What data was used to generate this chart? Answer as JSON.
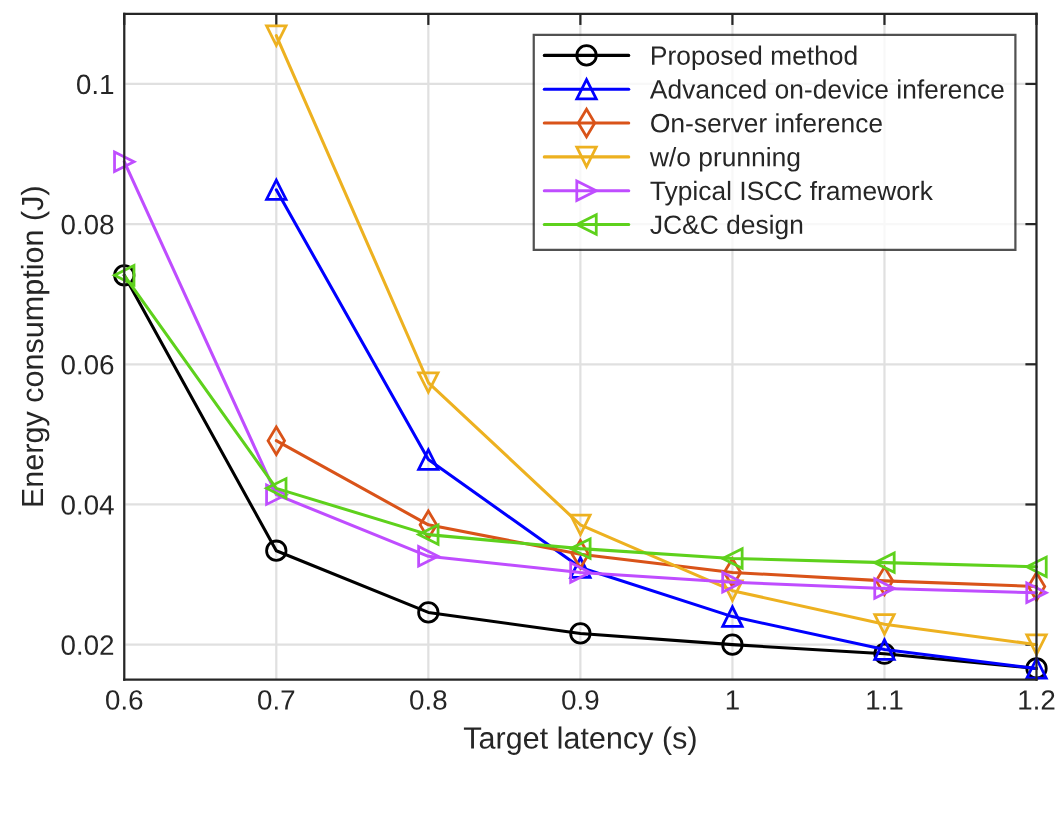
{
  "chart_data": {
    "type": "line",
    "xlabel": "Target latency (s)",
    "ylabel": "Energy consumption (J)",
    "x": [
      0.6,
      0.7,
      0.8,
      0.9,
      1.0,
      1.1,
      1.2
    ],
    "series": [
      {
        "name": "Proposed method",
        "color": "#000000",
        "marker": "circle",
        "values": [
          0.0727,
          0.0334,
          0.0246,
          0.0216,
          0.02,
          0.0187,
          0.0166
        ]
      },
      {
        "name": "Advanced on-device inference",
        "color": "#0000ff",
        "marker": "triangle",
        "values": [
          null,
          0.0849,
          0.0464,
          0.031,
          0.024,
          0.0193,
          0.0166
        ]
      },
      {
        "name": "On-server inference",
        "color": "#d95319",
        "marker": "diamond",
        "values": [
          null,
          0.0491,
          0.0371,
          0.0329,
          0.0303,
          0.0291,
          0.0283
        ]
      },
      {
        "name": "w/o prunning",
        "color": "#edb120",
        "marker": "triangle-down",
        "values": [
          null,
          0.1069,
          0.0574,
          0.0371,
          0.0277,
          0.0229,
          0.02
        ]
      },
      {
        "name": "Typical ISCC framework",
        "color": "#bf4dff",
        "marker": "triangle-right",
        "values": [
          0.0889,
          0.0414,
          0.0326,
          0.0303,
          0.0289,
          0.028,
          0.0274
        ]
      },
      {
        "name": "JC&C design",
        "color": "#5ed11c",
        "marker": "triangle-left",
        "values": [
          0.0727,
          0.0423,
          0.0357,
          0.0337,
          0.0323,
          0.0317,
          0.0311
        ]
      }
    ],
    "xlim": [
      0.6,
      1.2
    ],
    "xticks": [
      0.6,
      0.7,
      0.8,
      0.9,
      1,
      1.1,
      1.2
    ],
    "ylim": [
      0.015,
      0.11
    ],
    "yticks": [
      0.02,
      0.04,
      0.06,
      0.08,
      0.1
    ],
    "grid": true,
    "legend": "top right",
    "line_style": "solid"
  }
}
